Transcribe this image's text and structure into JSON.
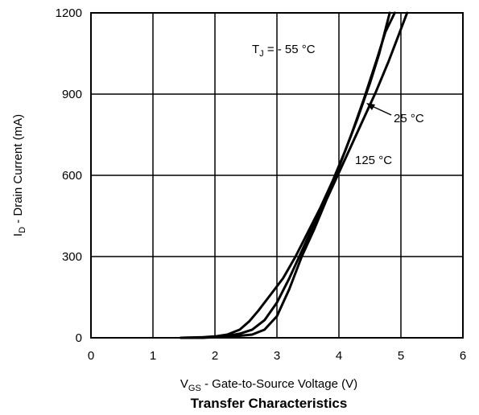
{
  "chart_data": {
    "type": "line",
    "title": "Transfer Characteristics",
    "xlabel": {
      "prefix": "V",
      "sub": "GS",
      "suffix": " - Gate-to-Source Voltage (V)"
    },
    "ylabel": {
      "prefix": "I",
      "sub": "D",
      "suffix": " - Drain Current (mA)"
    },
    "xlim": [
      0,
      6
    ],
    "ylim": [
      0,
      1200
    ],
    "x_ticks": [
      0,
      1,
      2,
      3,
      4,
      5,
      6
    ],
    "y_ticks": [
      0,
      300,
      600,
      900,
      1200
    ],
    "grid": true,
    "series": [
      {
        "name": "- 55 °C",
        "points": [
          [
            1.45,
            0
          ],
          [
            1.8,
            2
          ],
          [
            2.0,
            5
          ],
          [
            2.2,
            12
          ],
          [
            2.4,
            30
          ],
          [
            2.55,
            60
          ],
          [
            2.7,
            100
          ],
          [
            2.9,
            160
          ],
          [
            3.1,
            220
          ],
          [
            3.3,
            300
          ],
          [
            3.5,
            390
          ],
          [
            3.7,
            480
          ],
          [
            3.9,
            580
          ],
          [
            4.1,
            690
          ],
          [
            4.3,
            810
          ],
          [
            4.5,
            940
          ],
          [
            4.65,
            1050
          ],
          [
            4.82,
            1200
          ]
        ]
      },
      {
        "name": "25 °C",
        "points": [
          [
            1.45,
            0
          ],
          [
            1.8,
            1
          ],
          [
            2.0,
            3
          ],
          [
            2.2,
            7
          ],
          [
            2.4,
            15
          ],
          [
            2.6,
            30
          ],
          [
            2.8,
            65
          ],
          [
            3.0,
            130
          ],
          [
            3.2,
            220
          ],
          [
            3.4,
            320
          ],
          [
            3.6,
            420
          ],
          [
            3.8,
            520
          ],
          [
            4.0,
            630
          ],
          [
            4.2,
            750
          ],
          [
            4.4,
            880
          ],
          [
            4.6,
            1020
          ],
          [
            4.75,
            1130
          ],
          [
            4.9,
            1200
          ]
        ]
      },
      {
        "name": "125 °C",
        "points": [
          [
            1.45,
            0
          ],
          [
            1.8,
            0
          ],
          [
            2.0,
            2
          ],
          [
            2.3,
            5
          ],
          [
            2.6,
            12
          ],
          [
            2.8,
            30
          ],
          [
            3.0,
            80
          ],
          [
            3.2,
            180
          ],
          [
            3.4,
            300
          ],
          [
            3.6,
            400
          ],
          [
            3.8,
            510
          ],
          [
            4.0,
            610
          ],
          [
            4.2,
            710
          ],
          [
            4.4,
            810
          ],
          [
            4.6,
            910
          ],
          [
            4.8,
            1020
          ],
          [
            5.0,
            1140
          ],
          [
            5.1,
            1200
          ]
        ]
      }
    ],
    "annotations": [
      {
        "prefix": "T",
        "sub": "J",
        "suffix": " = - 55 °C"
      },
      {
        "text": "25 °C"
      },
      {
        "text": "125 °C"
      }
    ]
  }
}
